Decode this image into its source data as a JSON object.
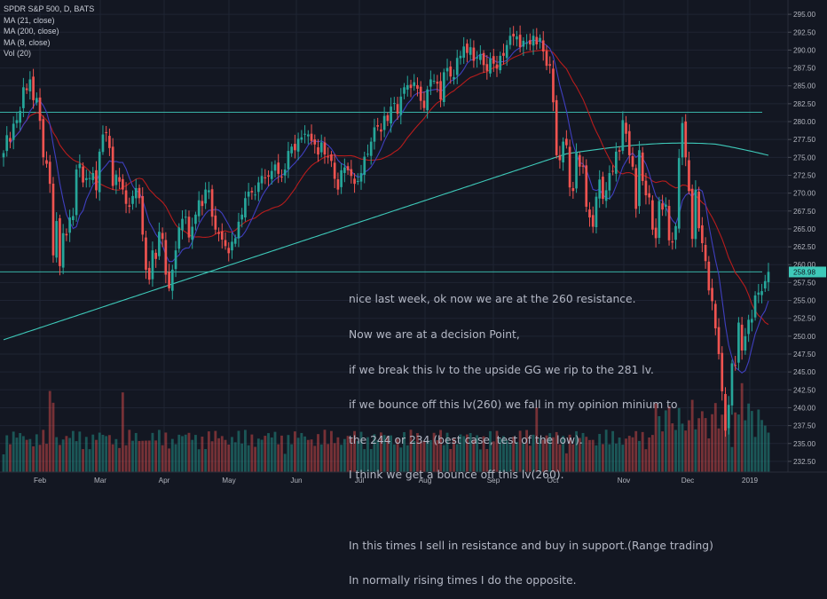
{
  "chart_data": {
    "type": "candlestick",
    "title": "SPDR S&P 500, D, BATS",
    "legend": [
      "MA (21, close)",
      "MA (200, close)",
      "MA (8, close)",
      "Vol (20)"
    ],
    "ylim": [
      231,
      297
    ],
    "y_ticks": [
      "295.00",
      "292.50",
      "290.00",
      "287.50",
      "285.00",
      "282.50",
      "280.00",
      "277.50",
      "275.00",
      "272.50",
      "270.00",
      "267.50",
      "265.00",
      "262.50",
      "260.00",
      "257.50",
      "255.00",
      "252.50",
      "250.00",
      "247.50",
      "245.00",
      "242.50",
      "240.00",
      "237.50",
      "235.00",
      "232.50"
    ],
    "x_ticks": [
      "Feb",
      "Mar",
      "Apr",
      "May",
      "Jun",
      "Jul",
      "Aug",
      "Sep",
      "Oct",
      "Nov",
      "Dec",
      "2019"
    ],
    "last_price": "258.98",
    "horizontal_lines": [
      281.3,
      259.0
    ],
    "close": [
      275.6,
      278.1,
      277.2,
      279.7,
      280.2,
      281.5,
      284.8,
      284.4,
      285.9,
      283.0,
      283.3,
      280.1,
      275.0,
      274.1,
      271.3,
      261.3,
      266.1,
      259.8,
      264.4,
      264.1,
      266.6,
      266.8,
      273.3,
      274.1,
      271.5,
      272.1,
      272.1,
      272.8,
      270.4,
      275.8,
      278.2,
      278.4,
      276.3,
      271.0,
      272.6,
      271.6,
      270.5,
      268.5,
      268.1,
      269.6,
      270.7,
      269.3,
      264.2,
      259.3,
      257.9,
      262.0,
      260.8,
      264.6,
      263.6,
      258.6,
      256.7,
      259.3,
      262.0,
      265.2,
      266.4,
      266.7,
      263.8,
      265.3,
      267.0,
      269.0,
      268.2,
      270.5,
      270.4,
      266.7,
      264.9,
      264.3,
      263.5,
      262.6,
      261.6,
      263.2,
      263.7,
      266.0,
      267.0,
      269.3,
      270.2,
      270.1,
      269.8,
      271.5,
      272.4,
      272.1,
      272.3,
      273.1,
      274.0,
      272.7,
      272.2,
      273.3,
      275.9,
      276.5,
      276.0,
      277.6,
      277.8,
      278.3,
      278.2,
      277.3,
      276.8,
      275.4,
      277.1,
      275.4,
      275.0,
      274.5,
      272.0,
      270.5,
      273.2,
      273.6,
      273.2,
      272.4,
      271.3,
      271.7,
      272.8,
      275.1,
      275.5,
      277.2,
      279.2,
      279.3,
      278.6,
      280.8,
      280.1,
      282.1,
      282.6,
      281.1,
      283.5,
      284.8,
      285.1,
      284.7,
      285.5,
      284.6,
      282.9,
      281.9,
      284.5,
      285.9,
      285.7,
      285.3,
      283.1,
      286.9,
      287.5,
      286.3,
      286.2,
      288.9,
      289.2,
      290.5,
      289.6,
      290.4,
      288.5,
      289.0,
      289.4,
      287.9,
      287.1,
      288.8,
      288.1,
      287.4,
      289.2,
      289.2,
      290.7,
      292.0,
      291.9,
      291.9,
      290.4,
      291.3,
      291.0,
      290.8,
      292.0,
      290.8,
      291.7,
      289.8,
      287.8,
      287.8,
      282.7,
      275.3,
      274.6,
      277.2,
      276.7,
      270.8,
      270.3,
      275.7,
      273.7,
      273.7,
      268.1,
      266.6,
      265.3,
      269.5,
      271.9,
      269.2,
      270.4,
      272.8,
      273.1,
      275.8,
      275.8,
      280.2,
      278.3,
      275.3,
      273.7,
      267.8,
      276.0,
      271.7,
      269.7,
      269.4,
      264.9,
      263.7,
      268.9,
      267.7,
      268.4,
      263.4,
      263.1,
      265.4,
      274.9,
      279.8,
      275.0,
      270.3,
      263.6,
      270.5,
      265.1,
      263.0,
      260.5,
      256.4,
      254.9,
      251.1,
      247.5,
      242.3,
      236.8,
      240.4,
      246.2,
      245.9,
      251.9,
      248.0,
      250.0,
      252.3,
      252.4,
      255.7,
      256.1,
      256.3,
      257.7,
      259.0
    ],
    "volume_scale": "relative",
    "volume_note": "volume shown as relative bar heights"
  },
  "annotation": [
    "nice last week, ok now we are at the 260 resistance.",
    "Now we are at a decision Point,",
    "if we break this lv to the upside GG we rip to the 281 lv.",
    "if we bounce off this lv(260) we fall in my opinion minium to",
    "the 244 or 234 (best case, test of the low).",
    "I think we get a bounce off this lv(260).",
    "",
    "In this times I sell in resistance and buy in support.(Range trading)",
    "In normally rising times I do the opposite."
  ],
  "colors": {
    "background": "#131722",
    "grid": "#1f2433",
    "up": "#26a69a",
    "down": "#ef5350",
    "ma21": "#b71c1c",
    "ma200": "#3ec9b9",
    "ma8": "#3f3fbf",
    "text": "#b2b5be"
  }
}
